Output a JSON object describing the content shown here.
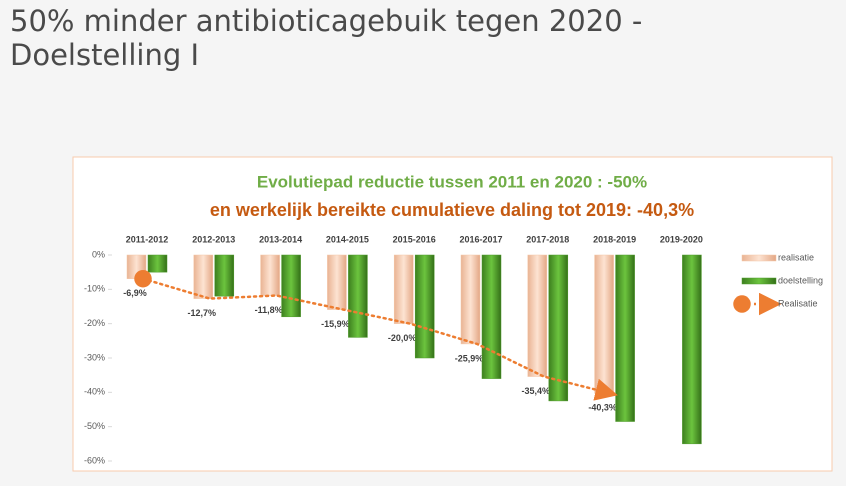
{
  "heading": "50% minder antibioticagebuik tegen 2020 - Doelstelling I",
  "chart_data": {
    "type": "bar",
    "title": "Evolutiepad reductie tussen 2011 en 2020 : -50%",
    "subtitle": "en werkelijk bereikte cumulatieve daling tot 2019: -40,3%",
    "categories": [
      "2011-2012",
      "2012-2013",
      "2013-2014",
      "2014-2015",
      "2015-2016",
      "2016-2017",
      "2017-2018",
      "2018-2019",
      "2019-2020"
    ],
    "series": [
      {
        "name": "realisatie",
        "color": "#f4c7a8",
        "values": [
          -6.9,
          -12.7,
          -11.8,
          -15.9,
          -20.0,
          -25.9,
          -35.4,
          -40.3,
          null
        ],
        "value_labels": [
          "-6,9%",
          "-12,7%",
          "-11,8%",
          "-15,9%",
          "-20,0%",
          "-25,9%",
          "-35,4%",
          "-40,3%",
          null
        ]
      },
      {
        "name": "doelstelling",
        "color": "#4e9a2a",
        "values": [
          -5,
          -12,
          -18,
          -24,
          -30,
          -36,
          -42.5,
          -48.5,
          -55
        ]
      },
      {
        "name": "Realisatie",
        "type": "line",
        "color": "#ed7d31",
        "values": [
          -6.9,
          -12.7,
          -11.8,
          -15.9,
          -20.0,
          -25.9,
          -35.4,
          -40.3,
          null
        ]
      }
    ],
    "ylim": [
      -60,
      0
    ],
    "yticks": [
      {
        "value": 0,
        "label": "0%"
      },
      {
        "value": -10,
        "label": "-10%"
      },
      {
        "value": -20,
        "label": "-20%"
      },
      {
        "value": -30,
        "label": "-30%"
      },
      {
        "value": -40,
        "label": "-40%"
      },
      {
        "value": -50,
        "label": "-50%"
      },
      {
        "value": -60,
        "label": "-60%"
      }
    ],
    "legend": "right"
  }
}
